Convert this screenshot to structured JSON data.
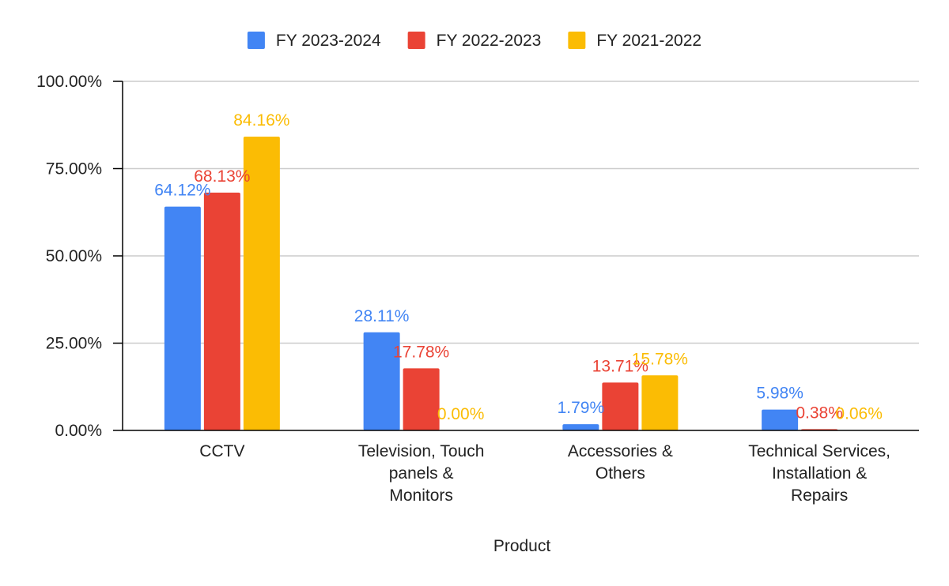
{
  "chart_data": {
    "type": "bar",
    "title": "",
    "xlabel": "Product",
    "ylabel": "",
    "categories": [
      [
        "CCTV"
      ],
      [
        "Television, Touch",
        "panels &",
        "Monitors"
      ],
      [
        "Accessories &",
        "Others"
      ],
      [
        "Technical Services,",
        "Installation &",
        "Repairs"
      ]
    ],
    "series": [
      {
        "name": "FY 2023-2024",
        "color": "#4285f4",
        "values": [
          64.12,
          28.11,
          1.79,
          5.98
        ],
        "labels": [
          "64.12%",
          "28.11%",
          "1.79%",
          "5.98%"
        ]
      },
      {
        "name": "FY 2022-2023",
        "color": "#ea4335",
        "values": [
          68.13,
          17.78,
          13.71,
          0.38
        ],
        "labels": [
          "68.13%",
          "17.78%",
          "13.71%",
          "0.38%"
        ]
      },
      {
        "name": "FY 2021-2022",
        "color": "#fbbc04",
        "values": [
          84.16,
          0.0,
          15.78,
          0.06
        ],
        "labels": [
          "84.16%",
          "0.00%",
          "15.78%",
          "0.06%"
        ]
      }
    ],
    "ylim": [
      0,
      100
    ],
    "yticks": [
      0,
      25,
      50,
      75,
      100
    ],
    "ytick_labels": [
      "0.00%",
      "25.00%",
      "50.00%",
      "75.00%",
      "100.00%"
    ],
    "grid": true,
    "legend_position": "top"
  }
}
